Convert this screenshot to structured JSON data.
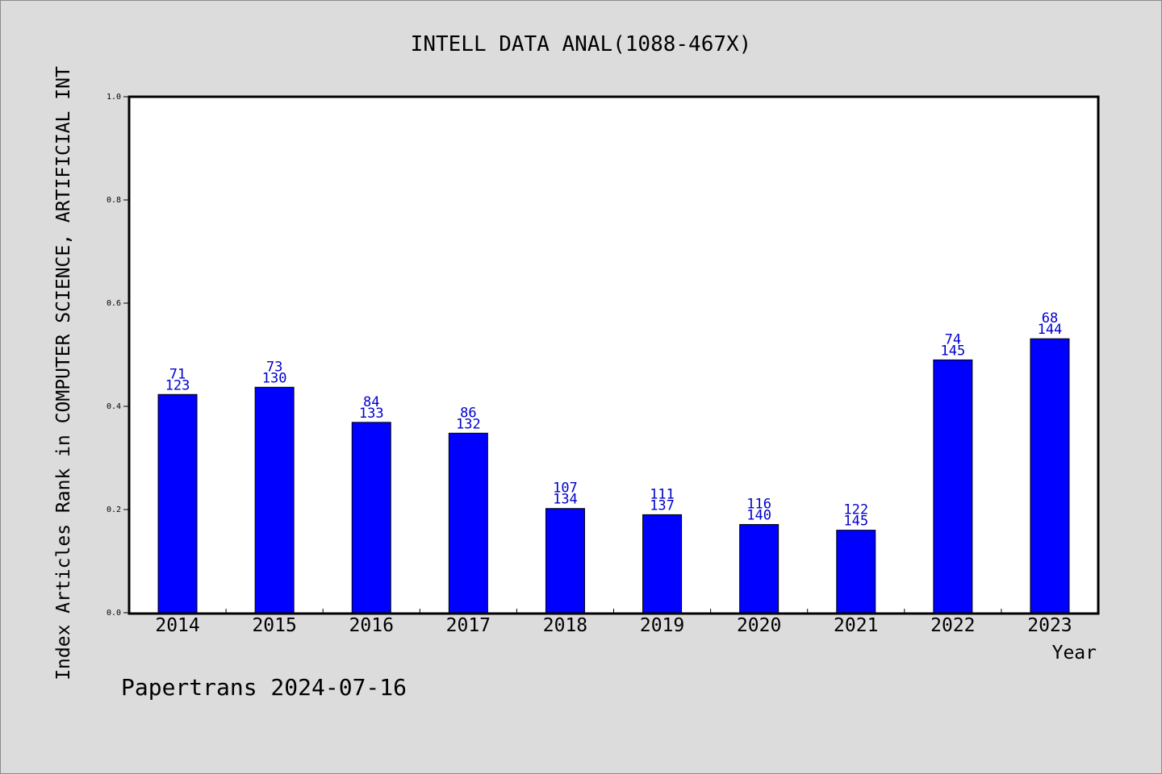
{
  "chart_data": {
    "type": "bar",
    "title": "INTELL DATA ANAL(1088-467X)",
    "xlabel": "Year",
    "ylabel": "Index Articles Rank in COMPUTER SCIENCE, ARTIFICIAL INT",
    "categories": [
      "2014",
      "2015",
      "2016",
      "2017",
      "2018",
      "2019",
      "2020",
      "2021",
      "2022",
      "2023"
    ],
    "values": [
      0.423,
      0.437,
      0.369,
      0.348,
      0.202,
      0.19,
      0.171,
      0.16,
      0.49,
      0.531
    ],
    "labels_top": [
      "71",
      "73",
      "84",
      "86",
      "107",
      "111",
      "116",
      "122",
      "74",
      "68"
    ],
    "labels_bottom": [
      "123",
      "130",
      "133",
      "132",
      "134",
      "137",
      "140",
      "145",
      "145",
      "144"
    ],
    "ylim": [
      0,
      1.0
    ],
    "yticks": [
      "0.0",
      "0.2",
      "0.4",
      "0.6",
      "0.8",
      "1.0"
    ],
    "grid": false,
    "colors": {
      "bar": "#0000ff",
      "label": "#0000cc",
      "background": "#dcdcdc",
      "plot": "#ffffff"
    }
  },
  "footer": {
    "source": "Papertrans 2024-07-16"
  }
}
